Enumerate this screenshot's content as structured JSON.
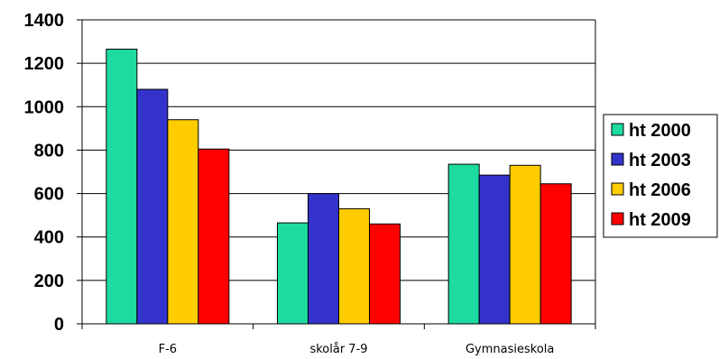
{
  "chart_data": {
    "type": "bar",
    "categories": [
      "F-6",
      "skolår 7-9",
      "Gymnasieskola"
    ],
    "series": [
      {
        "name": "ht 2000",
        "color": "#1ddba0",
        "values": [
          1265,
          465,
          735
        ]
      },
      {
        "name": "ht 2003",
        "color": "#3333cc",
        "values": [
          1080,
          600,
          685
        ]
      },
      {
        "name": "ht 2006",
        "color": "#ffcc00",
        "values": [
          940,
          530,
          730
        ]
      },
      {
        "name": "ht 2009",
        "color": "#ff0000",
        "values": [
          805,
          460,
          645
        ]
      }
    ],
    "ylim": [
      0,
      1400
    ],
    "yticks": [
      "0",
      "200",
      "400",
      "600",
      "800",
      "1000",
      "1200",
      "1400"
    ],
    "grid": true,
    "legend_position": "right"
  }
}
